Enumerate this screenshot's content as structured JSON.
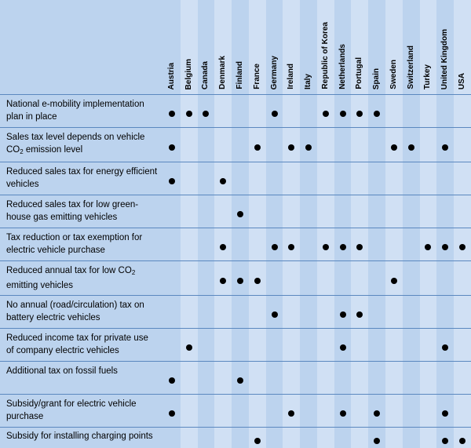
{
  "countries": [
    "Austria",
    "Belgium",
    "Canada",
    "Denmark",
    "Finland",
    "France",
    "Germany",
    "Ireland",
    "Italy",
    "Republic of Korea",
    "Netherlands",
    "Portugal",
    "Spain",
    "Sweden",
    "Switzerland",
    "Turkey",
    "United Kingdom",
    "USA"
  ],
  "rows": [
    {
      "label_lines": [
        "National e-mobility implementation",
        "plan in place"
      ],
      "marks": [
        1,
        1,
        1,
        0,
        0,
        0,
        1,
        0,
        0,
        1,
        1,
        1,
        1,
        0,
        0,
        0,
        0,
        0
      ]
    },
    {
      "label_lines": [
        "Sales tax level depends on vehicle",
        "CO",
        "2",
        " emission level"
      ],
      "marks": [
        1,
        0,
        0,
        0,
        0,
        1,
        0,
        1,
        1,
        0,
        0,
        0,
        0,
        1,
        1,
        0,
        1,
        0
      ]
    },
    {
      "label_lines": [
        "Reduced sales tax for energy efficient",
        "vehicles"
      ],
      "marks": [
        1,
        0,
        0,
        1,
        0,
        0,
        0,
        0,
        0,
        0,
        0,
        0,
        0,
        0,
        0,
        0,
        0,
        0
      ]
    },
    {
      "label_lines": [
        "Reduced sales tax for low green-",
        "house gas emitting vehicles"
      ],
      "marks": [
        0,
        0,
        0,
        0,
        1,
        0,
        0,
        0,
        0,
        0,
        0,
        0,
        0,
        0,
        0,
        0,
        0,
        0
      ]
    },
    {
      "label_lines": [
        "Tax reduction or tax exemption for",
        "electric vehicle purchase"
      ],
      "marks": [
        0,
        0,
        0,
        1,
        0,
        0,
        1,
        1,
        0,
        1,
        1,
        1,
        0,
        0,
        0,
        1,
        1,
        1
      ]
    },
    {
      "label_lines": [
        "Reduced annual tax for low CO",
        "2",
        "emitting vehicles"
      ],
      "marks": [
        0,
        0,
        0,
        1,
        1,
        1,
        0,
        0,
        0,
        0,
        0,
        0,
        0,
        1,
        0,
        0,
        0,
        0
      ]
    },
    {
      "label_lines": [
        "No annual (road/circulation) tax on",
        "battery electric vehicles"
      ],
      "marks": [
        0,
        0,
        0,
        0,
        0,
        0,
        1,
        0,
        0,
        0,
        1,
        1,
        0,
        0,
        0,
        0,
        0,
        0
      ]
    },
    {
      "label_lines": [
        "Reduced income tax for private use",
        "of company electric vehicles"
      ],
      "marks": [
        0,
        1,
        0,
        0,
        0,
        0,
        0,
        0,
        0,
        0,
        1,
        0,
        0,
        0,
        0,
        0,
        1,
        0
      ]
    },
    {
      "label_lines": [
        "Additional tax on fossil fuels"
      ],
      "marks": [
        1,
        0,
        0,
        0,
        1,
        0,
        0,
        0,
        0,
        0,
        0,
        0,
        0,
        0,
        0,
        0,
        0,
        0
      ]
    },
    {
      "label_lines": [
        "Subsidy/grant for electric vehicle",
        "purchase"
      ],
      "marks": [
        1,
        0,
        0,
        0,
        0,
        0,
        0,
        1,
        0,
        0,
        1,
        0,
        1,
        0,
        0,
        0,
        1,
        0
      ]
    },
    {
      "label_lines": [
        "Subsidy for installing charging points"
      ],
      "marks": [
        0,
        0,
        0,
        0,
        0,
        1,
        0,
        0,
        0,
        0,
        0,
        0,
        1,
        0,
        0,
        0,
        1,
        1
      ]
    }
  ],
  "colors": {
    "band_dark": "#bcd3ee",
    "band_light": "#d0e0f4",
    "rule": "#5b88bf"
  }
}
